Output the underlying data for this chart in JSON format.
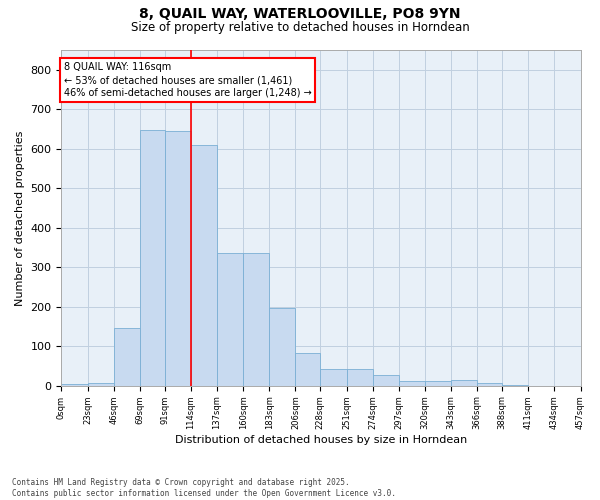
{
  "title_line1": "8, QUAIL WAY, WATERLOOVILLE, PO8 9YN",
  "title_line2": "Size of property relative to detached houses in Horndean",
  "xlabel": "Distribution of detached houses by size in Horndean",
  "ylabel": "Number of detached properties",
  "bar_edges": [
    0,
    23,
    46,
    69,
    91,
    114,
    137,
    160,
    183,
    206,
    228,
    251,
    274,
    297,
    320,
    343,
    366,
    388,
    411,
    434,
    457
  ],
  "bar_heights": [
    5,
    8,
    145,
    648,
    645,
    610,
    335,
    335,
    197,
    84,
    43,
    43,
    26,
    12,
    12,
    15,
    8,
    3,
    0,
    0,
    5
  ],
  "bar_color": "#c8daf0",
  "bar_edgecolor": "#7aafd4",
  "vline_x": 114,
  "vline_color": "red",
  "annotation_text": "8 QUAIL WAY: 116sqm\n← 53% of detached houses are smaller (1,461)\n46% of semi-detached houses are larger (1,248) →",
  "annotation_box_color": "white",
  "annotation_box_edgecolor": "red",
  "ylim": [
    0,
    850
  ],
  "yticks": [
    0,
    100,
    200,
    300,
    400,
    500,
    600,
    700,
    800
  ],
  "tick_labels": [
    "0sqm",
    "23sqm",
    "46sqm",
    "69sqm",
    "91sqm",
    "114sqm",
    "137sqm",
    "160sqm",
    "183sqm",
    "206sqm",
    "228sqm",
    "251sqm",
    "274sqm",
    "297sqm",
    "320sqm",
    "343sqm",
    "366sqm",
    "388sqm",
    "411sqm",
    "434sqm",
    "457sqm"
  ],
  "grid_color": "#c0cfe0",
  "background_color": "#e8f0f8",
  "footer_line1": "Contains HM Land Registry data © Crown copyright and database right 2025.",
  "footer_line2": "Contains public sector information licensed under the Open Government Licence v3.0."
}
